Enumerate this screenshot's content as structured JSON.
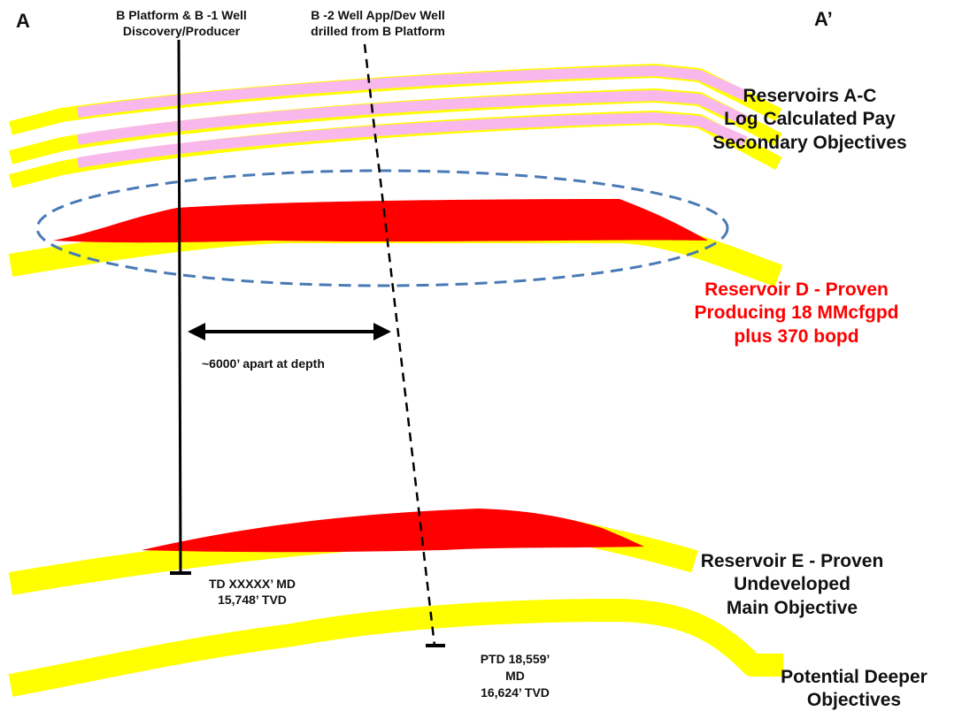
{
  "corner_labels": {
    "left": "A",
    "right": "A’"
  },
  "wells": {
    "b1": {
      "line1": "B Platform & B -1 Well",
      "line2": "Discovery/Producer"
    },
    "b2": {
      "line1": "B -2 Well App/Dev Well",
      "line2": "drilled from B Platform"
    }
  },
  "td_b1": {
    "line1": "TD XXXXX’ MD",
    "line2": "15,748’ TVD"
  },
  "ptd_b2": {
    "line1": "PTD 18,559’",
    "line2": "MD",
    "line3": "16,624’ TVD"
  },
  "spacing_label": "~6000’ apart at depth",
  "reservoirs": {
    "ac": {
      "line1": "Reservoirs A-C",
      "line2": "Log Calculated Pay",
      "line3": "Secondary Objectives"
    },
    "d": {
      "line1": "Reservoir D - Proven",
      "line2": "Producing 18 MMcfgpd",
      "line3": "plus 370 bopd"
    },
    "e": {
      "line1": "Reservoir E - Proven",
      "line2": "Undeveloped",
      "line3": "Main Objective"
    },
    "deeper": {
      "line1": "Potential Deeper",
      "line2": "Objectives"
    }
  },
  "colors": {
    "formation": "#ffff00",
    "pay_secondary": "#f9b8ec",
    "pay_proven": "#ff0000",
    "highlight_ellipse": "#4a7ab5",
    "reservoir_d_text": "#ff0000",
    "text": "#111111"
  }
}
